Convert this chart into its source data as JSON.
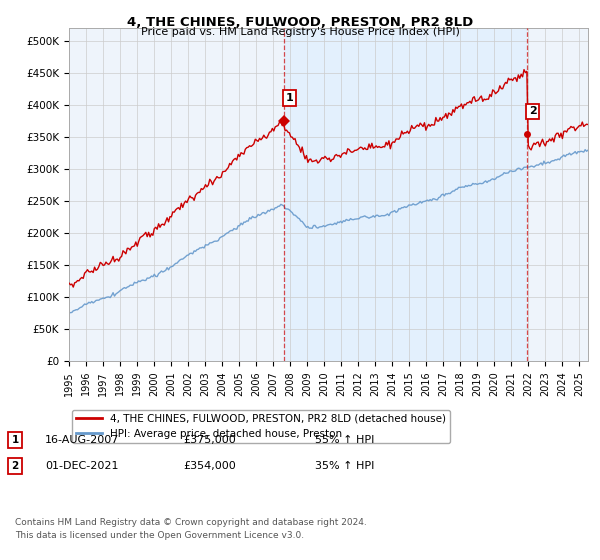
{
  "title": "4, THE CHINES, FULWOOD, PRESTON, PR2 8LD",
  "subtitle": "Price paid vs. HM Land Registry's House Price Index (HPI)",
  "red_label": "4, THE CHINES, FULWOOD, PRESTON, PR2 8LD (detached house)",
  "blue_label": "HPI: Average price, detached house, Preston",
  "marker1_date": "16-AUG-2007",
  "marker1_price": 375000,
  "marker1_hpi": "55% ↑ HPI",
  "marker2_date": "01-DEC-2021",
  "marker2_price": 354000,
  "marker2_hpi": "35% ↑ HPI",
  "footer": "Contains HM Land Registry data © Crown copyright and database right 2024.\nThis data is licensed under the Open Government Licence v3.0.",
  "xmin": 1995.0,
  "xmax": 2025.5,
  "ymin": 0,
  "ymax": 520000,
  "red_color": "#cc0000",
  "blue_color": "#6699cc",
  "marker1_x": 2007.62,
  "marker2_x": 2021.92,
  "background_color": "#ffffff",
  "plot_bg_color": "#eef4fb",
  "grid_color": "#cccccc",
  "shade_color": "#ddeeff"
}
